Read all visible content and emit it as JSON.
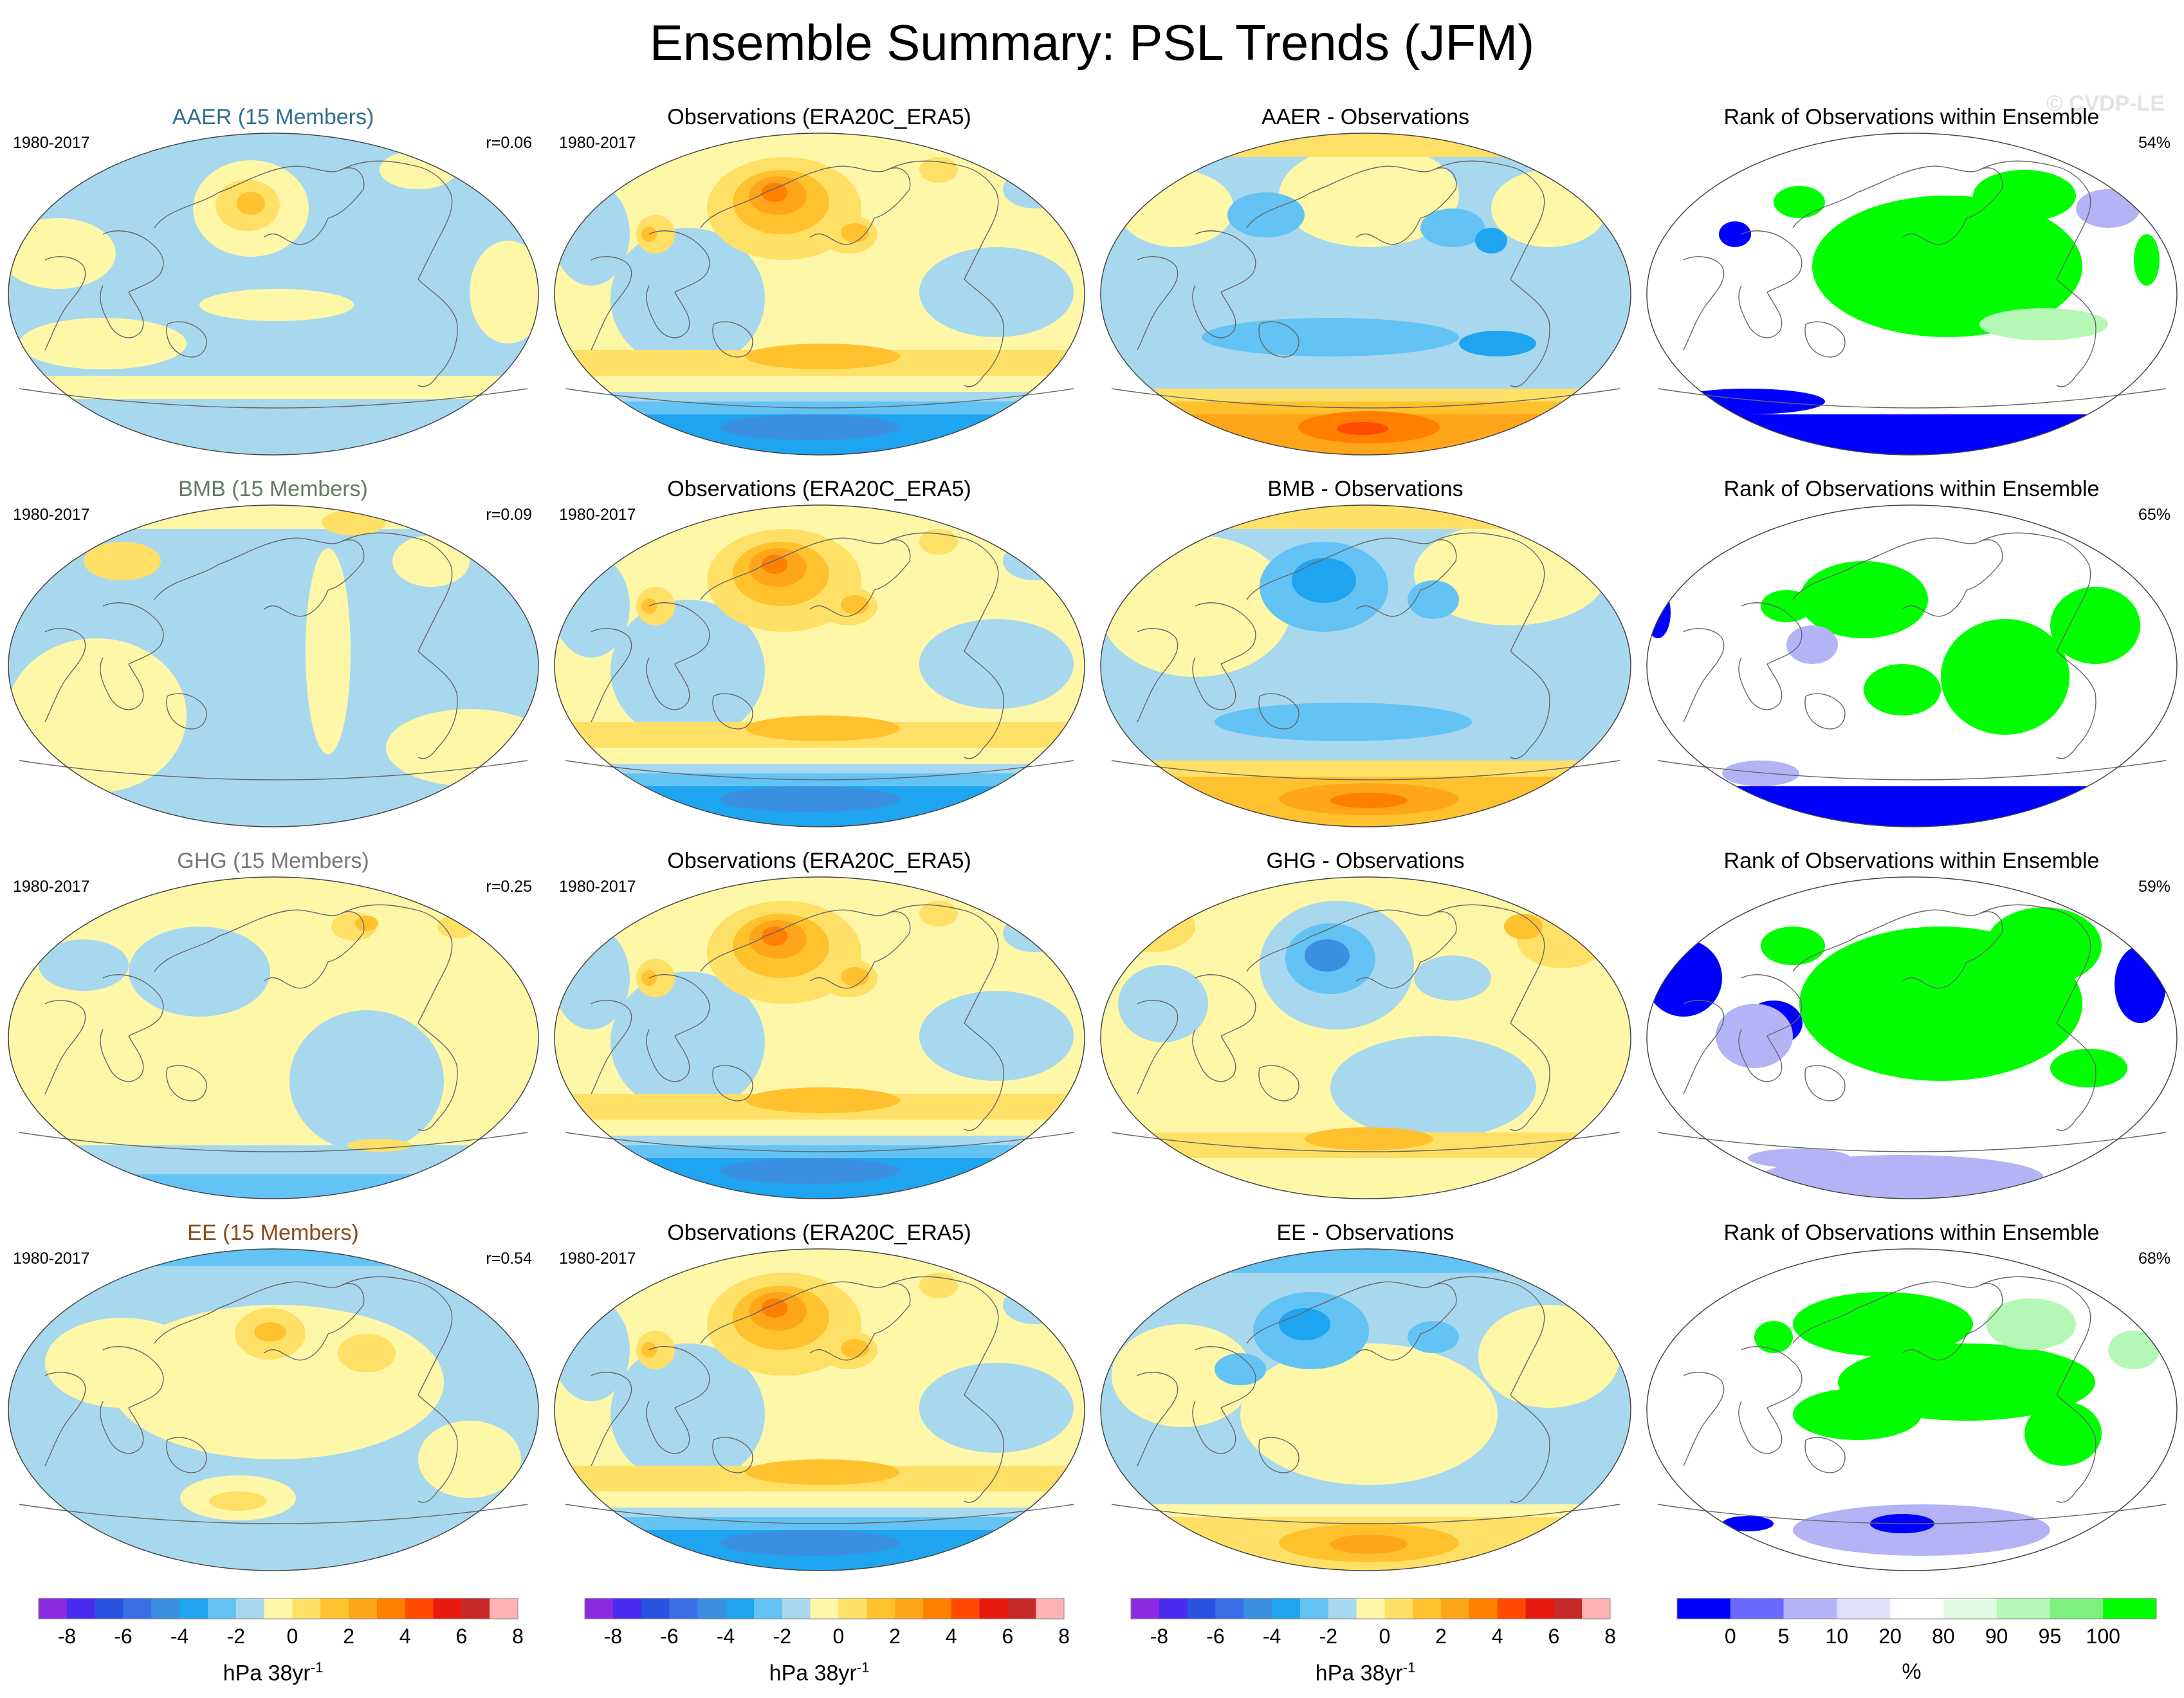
{
  "title": "Ensemble Summary: PSL Trends (JFM)",
  "watermark": "© CVDP-LE",
  "rows": [
    {
      "key": "aaer",
      "ensemble": {
        "title": "AAER (15 Members)",
        "title_color": "#2f6f8a",
        "years": "1980-2017",
        "corr": "r=0.06"
      },
      "obs": {
        "title": "Observations (ERA20C_ERA5)",
        "years": "1980-2017"
      },
      "diff": {
        "title": "AAER - Observations"
      },
      "rank": {
        "title": "Rank of Observations within Ensemble",
        "pct": "54%"
      }
    },
    {
      "key": "bmb",
      "ensemble": {
        "title": "BMB (15 Members)",
        "title_color": "#5e7e5e",
        "years": "1980-2017",
        "corr": "r=0.09"
      },
      "obs": {
        "title": "Observations (ERA20C_ERA5)",
        "years": "1980-2017"
      },
      "diff": {
        "title": "BMB - Observations"
      },
      "rank": {
        "title": "Rank of Observations within Ensemble",
        "pct": "65%"
      }
    },
    {
      "key": "ghg",
      "ensemble": {
        "title": "GHG (15 Members)",
        "title_color": "#777777",
        "years": "1980-2017",
        "corr": "r=0.25"
      },
      "obs": {
        "title": "Observations (ERA20C_ERA5)",
        "years": "1980-2017"
      },
      "diff": {
        "title": "GHG - Observations"
      },
      "rank": {
        "title": "Rank of Observations within Ensemble",
        "pct": "59%"
      }
    },
    {
      "key": "ee",
      "ensemble": {
        "title": "EE (15 Members)",
        "title_color": "#8a4a1a",
        "years": "1980-2017",
        "corr": "r=0.54"
      },
      "obs": {
        "title": "Observations (ERA20C_ERA5)",
        "years": "1980-2017"
      },
      "diff": {
        "title": "EE - Observations"
      },
      "rank": {
        "title": "Rank of Observations within Ensemble",
        "pct": "68%"
      }
    }
  ],
  "trend_colorbar": {
    "colors": [
      "#8a2be2",
      "#4a2cf0",
      "#2a52e0",
      "#3a6fe8",
      "#3b8fe0",
      "#1fa4f0",
      "#63c3f5",
      "#a8d8ee",
      "#fff7a8",
      "#ffe066",
      "#ffc22e",
      "#ffa51c",
      "#ff7f00",
      "#ff4a00",
      "#e81a10",
      "#c82a2a",
      "#ffb3b3"
    ],
    "labels": [
      "-8",
      "-6",
      "-4",
      "-2",
      "0",
      "2",
      "4",
      "6",
      "8"
    ],
    "label_boundaries": [
      1,
      3,
      5,
      7,
      9,
      11,
      13,
      15,
      17
    ],
    "unit": "hPa 38yr",
    "unit_sup": "-1"
  },
  "rank_colorbar": {
    "colors": [
      "#0000ff",
      "#6a6aff",
      "#b3b3f5",
      "#e0e0f8",
      "#ffffff",
      "#e1fbe1",
      "#b5f7b5",
      "#7ef07e",
      "#00ff00"
    ],
    "labels": [
      "0",
      "5",
      "10",
      "20",
      "80",
      "90",
      "95",
      "100"
    ],
    "label_boundaries": [
      1,
      2,
      3,
      4,
      5,
      6,
      7,
      8
    ],
    "unit": "%"
  },
  "map_colors": {
    "pos1": "#fff7a8",
    "pos2": "#ffe066",
    "pos3": "#ffc22e",
    "pos4": "#ffa51c",
    "pos5": "#ff7f00",
    "pos6": "#ff4a00",
    "neg1": "#a8d8ee",
    "neg2": "#63c3f5",
    "neg3": "#1fa4f0",
    "neg4": "#3b8fe0",
    "neg5": "#3a6fe8",
    "r_hi": "#00ff00",
    "r_hi2": "#b5f7b5",
    "r_lo": "#0000ff",
    "r_lo2": "#b3b3f5",
    "r_mid": "#ffffff",
    "coast": "#666666",
    "outline": "#444444"
  }
}
